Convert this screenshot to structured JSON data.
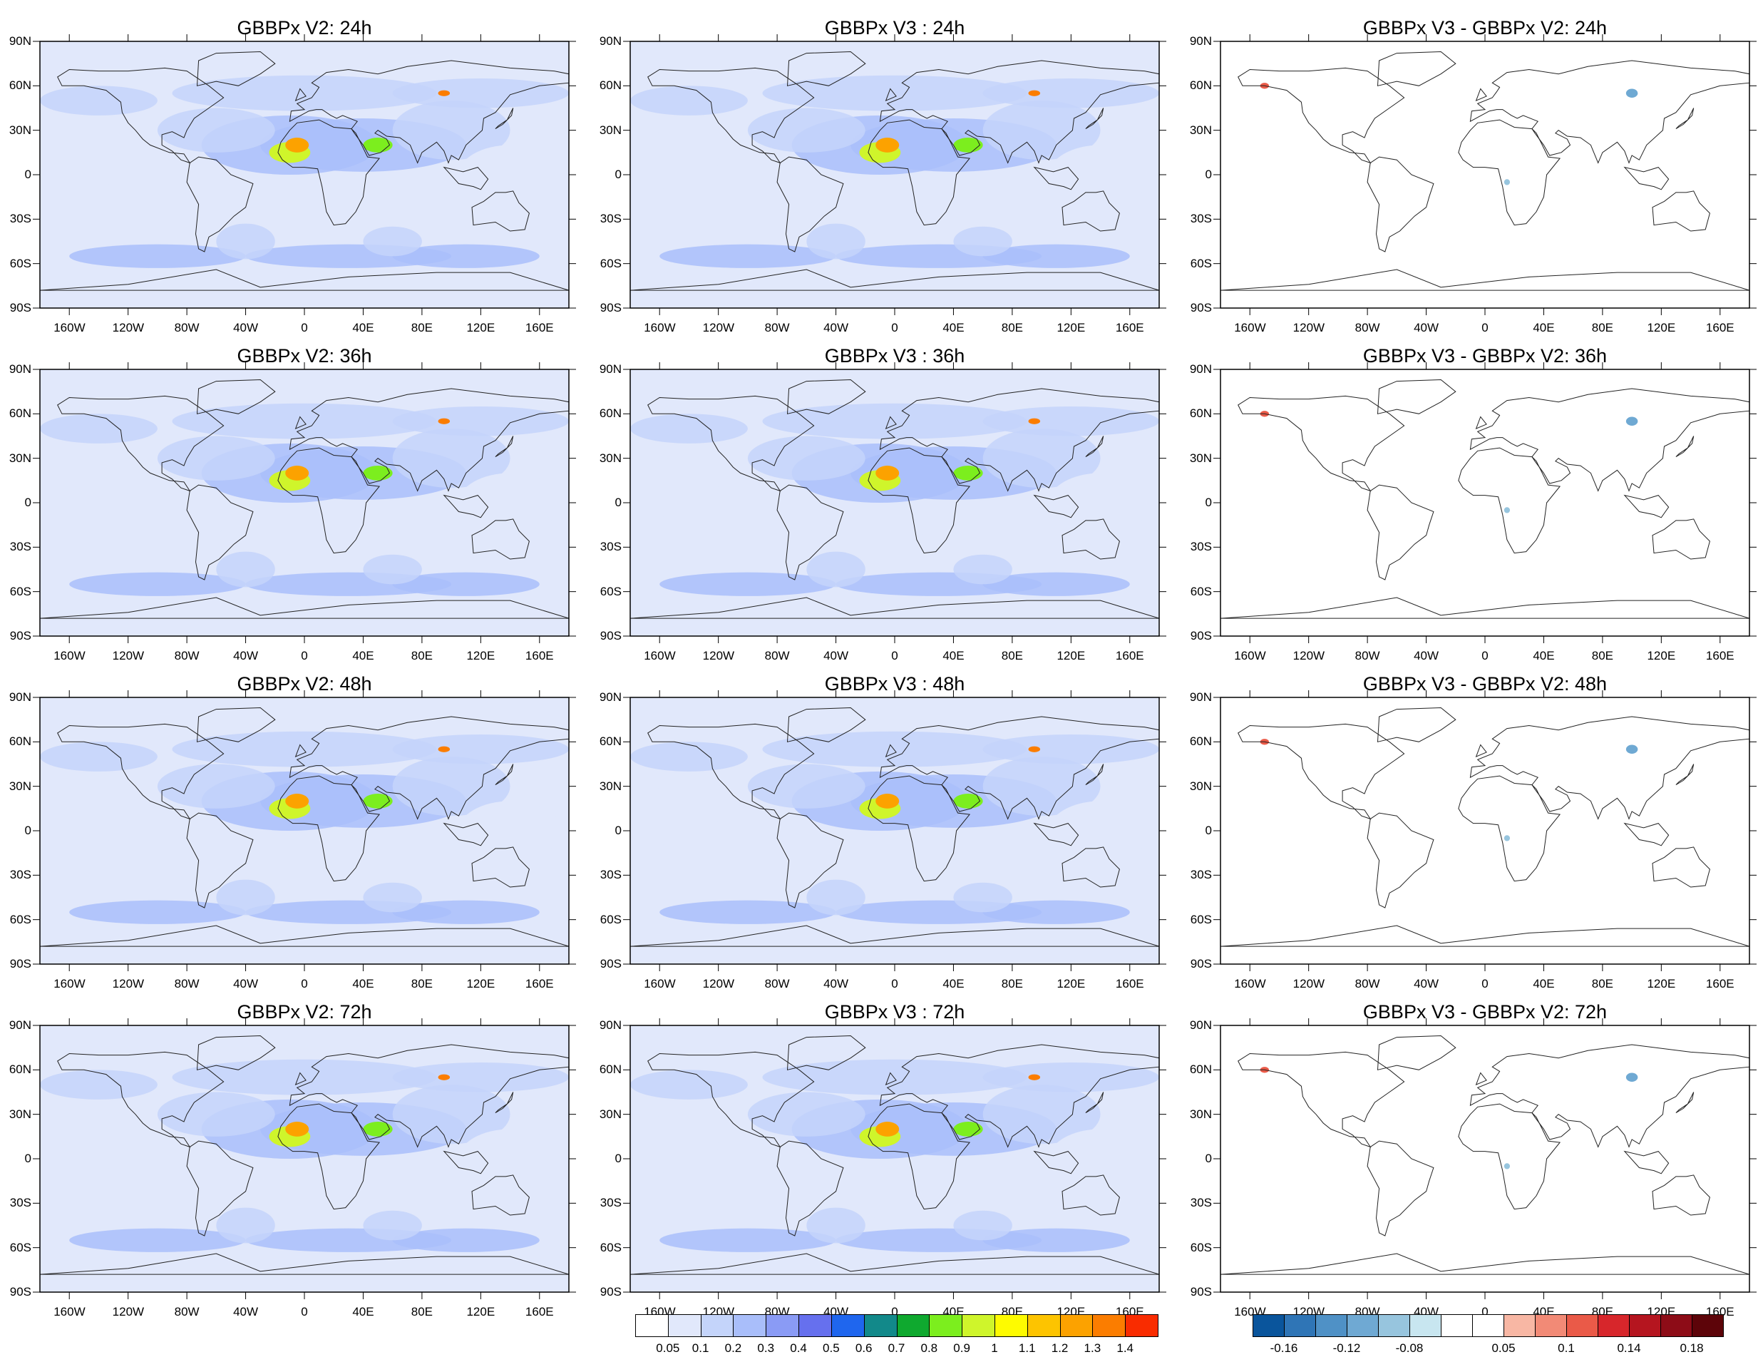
{
  "panels": [
    {
      "title": "GBBPx V2: 24h",
      "kind": "v2",
      "hour": "24h"
    },
    {
      "title": "GBBPx V3 : 24h",
      "kind": "v3",
      "hour": "24h"
    },
    {
      "title": "GBBPx V3 - GBBPx V2: 24h",
      "kind": "diff",
      "hour": "24h"
    },
    {
      "title": "GBBPx V2: 36h",
      "kind": "v2",
      "hour": "36h"
    },
    {
      "title": "GBBPx V3 : 36h",
      "kind": "v3",
      "hour": "36h"
    },
    {
      "title": "GBBPx V3 - GBBPx V2: 36h",
      "kind": "diff",
      "hour": "36h"
    },
    {
      "title": "GBBPx V2: 48h",
      "kind": "v2",
      "hour": "48h"
    },
    {
      "title": "GBBPx V3 : 48h",
      "kind": "v3",
      "hour": "48h"
    },
    {
      "title": "GBBPx V3 - GBBPx V2: 48h",
      "kind": "diff",
      "hour": "48h"
    },
    {
      "title": "GBBPx V2: 72h",
      "kind": "v2",
      "hour": "72h"
    },
    {
      "title": "GBBPx V3 : 72h",
      "kind": "v3",
      "hour": "72h"
    },
    {
      "title": "GBBPx V3 - GBBPx V2: 72h",
      "kind": "diff",
      "hour": "72h"
    }
  ],
  "axes": {
    "lat_labels": [
      "90N",
      "60N",
      "30N",
      "0",
      "30S",
      "60S",
      "90S"
    ],
    "lon_labels": [
      "160W",
      "120W",
      "80W",
      "40W",
      "0",
      "40E",
      "80E",
      "120E",
      "160E"
    ],
    "lat_range": [
      -90,
      90
    ],
    "lon_range": [
      -180,
      180
    ]
  },
  "colorbar_main": {
    "labels": [
      "0.05",
      "0.1",
      "0.2",
      "0.3",
      "0.4",
      "0.5",
      "0.6",
      "0.7",
      "0.8",
      "0.9",
      "1",
      "1.1",
      "1.2",
      "1.3",
      "1.4"
    ],
    "colors": [
      "#ffffff",
      "#e1e8fb",
      "#c4d4fa",
      "#a9befa",
      "#8a9bf5",
      "#6670ee",
      "#1f66ee",
      "#12898a",
      "#0fa92f",
      "#7cee1e",
      "#cff52b",
      "#fefb00",
      "#fdc400",
      "#fca200",
      "#fb7d00",
      "#f92c00"
    ]
  },
  "colorbar_diff": {
    "labels": [
      "-0.16",
      "-0.12",
      "-0.08",
      "0.05",
      "0.1",
      "0.14",
      "0.18"
    ],
    "label_positions": [
      1,
      3,
      5,
      8,
      10,
      12,
      14
    ],
    "colors": [
      "#0a559c",
      "#2f75b6",
      "#4f91c6",
      "#6fa9d3",
      "#97c5de",
      "#c8e6f0",
      "#ffffff",
      "#ffffff",
      "#f8b7a4",
      "#f28a76",
      "#ea5a48",
      "#d7262b",
      "#b5151f",
      "#8d0c17",
      "#5d0409"
    ]
  },
  "features": {
    "v2": [
      {
        "lon": -10,
        "lat": 15,
        "rx": 14,
        "ry": 7,
        "level": 10
      },
      {
        "lon": -5,
        "lat": 20,
        "rx": 8,
        "ry": 5,
        "level": 13
      },
      {
        "lon": 50,
        "lat": 20,
        "rx": 10,
        "ry": 5,
        "level": 9
      },
      {
        "lon": 95,
        "lat": 55,
        "rx": 4,
        "ry": 2,
        "level": 14
      }
    ],
    "diff": [
      {
        "lon": 100,
        "lat": 55,
        "rx": 4,
        "ry": 3,
        "sign": "neg",
        "level": 3
      },
      {
        "lon": 15,
        "lat": -5,
        "rx": 2,
        "ry": 2,
        "sign": "neg",
        "level": 4
      },
      {
        "lon": -150,
        "lat": 60,
        "rx": 3,
        "ry": 2,
        "sign": "pos",
        "level": 10
      }
    ]
  }
}
